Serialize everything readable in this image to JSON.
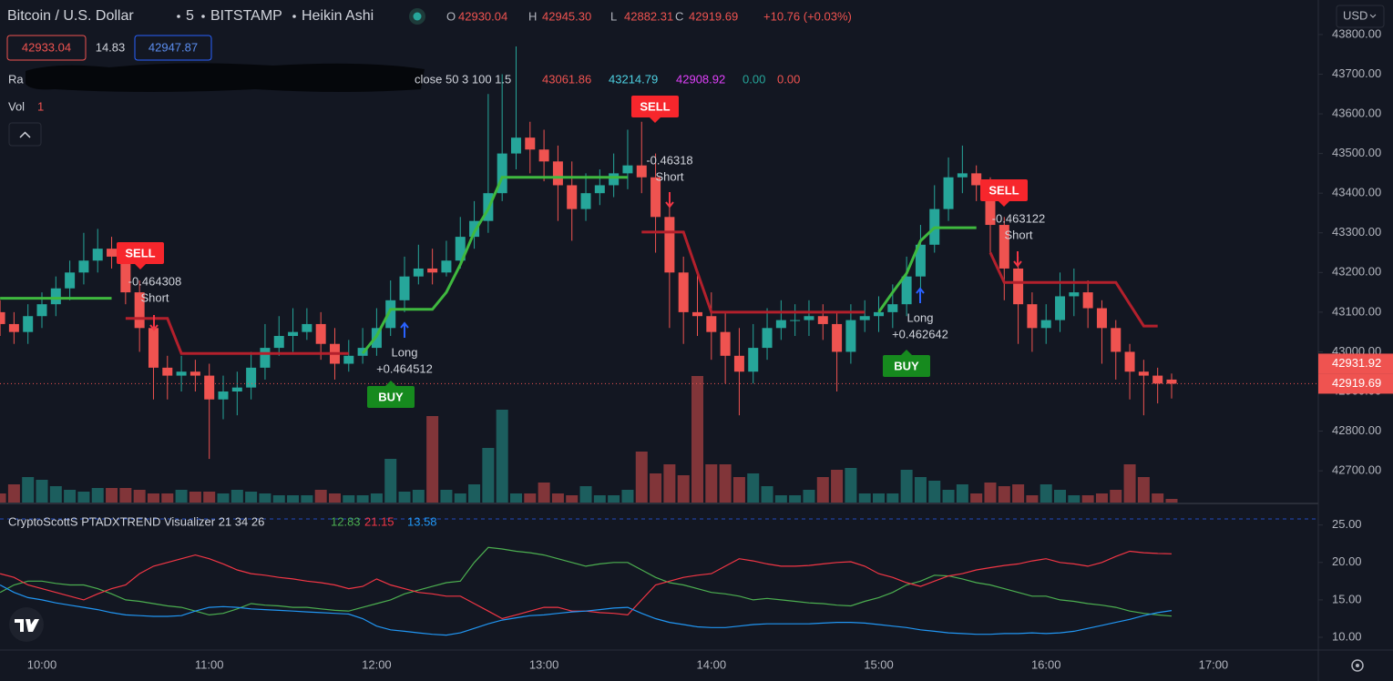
{
  "header": {
    "symbol": "Bitcoin / U.S. Dollar",
    "interval": "5",
    "exchange": "BITSTAMP",
    "style": "Heikin Ashi",
    "legend_keys": [
      "O",
      "H",
      "L",
      "C"
    ],
    "legend_values": [
      42930.04,
      {
        "value": 42945.3,
        "label": "42945.30"
      },
      42882.31,
      42919.69
    ],
    "change": "+10.76 (+0.03%)",
    "sell_price": 42933.04,
    "spread": 14.83,
    "buy_price": 42947.87,
    "indicator_visible_name": "Ra",
    "indicator_params": "close 50 3 100 1.5",
    "indicator_values": [
      43061.86,
      43214.79,
      42908.92,
      {
        "value": 0,
        "label": "0.00"
      },
      {
        "value": 0,
        "label": "0.00"
      }
    ],
    "volume_label": "Vol",
    "volume_length": 1,
    "currency": "USD"
  },
  "chart_data": [
    {
      "type": "candlestick",
      "x": [
        "09:45",
        "09:50",
        "09:55",
        "10:00",
        "10:05",
        "10:10",
        "10:15",
        "10:20",
        "10:25",
        "10:30",
        "10:35",
        "10:40",
        "10:45",
        "10:50",
        "10:55",
        "11:00",
        "11:05",
        "11:10",
        "11:15",
        "11:20",
        "11:25",
        "11:30",
        "11:35",
        "11:40",
        "11:45",
        "11:50",
        "11:55",
        "12:00",
        "12:05",
        "12:10",
        "12:15",
        "12:20",
        "12:25",
        "12:30",
        "12:35",
        "12:40",
        "12:45",
        "12:50",
        "12:55",
        "13:00",
        "13:05",
        "13:10",
        "13:15",
        "13:20",
        "13:25",
        "13:30",
        "13:35",
        "13:40",
        "13:45",
        "13:50",
        "13:55",
        "14:00",
        "14:05",
        "14:10",
        "14:15",
        "14:20",
        "14:25",
        "14:30",
        "14:35",
        "14:40",
        "14:45",
        "14:50",
        "14:55",
        "15:00",
        "15:05",
        "15:10",
        "15:15",
        "15:20",
        "15:25",
        "15:30",
        "15:35",
        "15:40",
        "15:45",
        "15:50",
        "15:55",
        "16:00",
        "16:05",
        "16:10",
        "16:15",
        "16:20",
        "16:25",
        "16:30",
        "16:35",
        "16:40",
        "16:45"
      ],
      "open": [
        43100,
        43070,
        43050,
        43090,
        43120,
        43160,
        43200,
        43230,
        43260,
        43240,
        43150,
        43060,
        42960,
        42940,
        42950,
        42940,
        42880,
        42900,
        42910,
        42960,
        43010,
        43040,
        43050,
        43070,
        43020,
        42970,
        42990,
        43010,
        43060,
        43130,
        43190,
        43210,
        43200,
        43230,
        43290,
        43330,
        43400,
        43500,
        43540,
        43510,
        43480,
        43420,
        43360,
        43400,
        43420,
        43450,
        43470,
        43440,
        43340,
        43200,
        43100,
        43090,
        43050,
        42990,
        42950,
        43010,
        43060,
        43080,
        43080,
        43090,
        43070,
        43000,
        43080,
        43090,
        43100,
        43120,
        43190,
        43270,
        43360,
        43440,
        43450,
        43420,
        43320,
        43210,
        43120,
        43060,
        43080,
        43140,
        43150,
        43110,
        43060,
        43000,
        42950,
        42940,
        42930.04
      ],
      "high": [
        43130,
        43100,
        43120,
        43150,
        43190,
        43230,
        43300,
        43310,
        43290,
        43270,
        43180,
        43090,
        42990,
        42990,
        42980,
        42970,
        42940,
        42950,
        43000,
        43070,
        43090,
        43110,
        43110,
        43100,
        43060,
        43030,
        43060,
        43110,
        43180,
        43240,
        43270,
        43260,
        43280,
        43340,
        43380,
        43650,
        43700,
        43770,
        43580,
        43560,
        43520,
        43480,
        43450,
        43460,
        43500,
        43560,
        43580,
        43500,
        43380,
        43240,
        43200,
        43150,
        43100,
        43060,
        43070,
        43110,
        43130,
        43120,
        43130,
        43120,
        43100,
        43120,
        43130,
        43140,
        43170,
        43240,
        43320,
        43420,
        43490,
        43520,
        43470,
        43440,
        43340,
        43240,
        43150,
        43120,
        43200,
        43210,
        43180,
        43130,
        43080,
        43020,
        42980,
        42960,
        42945.3
      ],
      "low": [
        43040,
        43020,
        43020,
        43060,
        43090,
        43130,
        43170,
        43200,
        43210,
        43120,
        43000,
        42880,
        42880,
        42900,
        42900,
        42730,
        42830,
        42840,
        42880,
        42930,
        42990,
        43000,
        43030,
        42980,
        42930,
        42950,
        42970,
        42990,
        43040,
        43100,
        43170,
        43170,
        43190,
        43210,
        43260,
        43300,
        43380,
        43460,
        43450,
        43430,
        43330,
        43280,
        43330,
        43370,
        43390,
        43410,
        43400,
        43250,
        43060,
        43020,
        43040,
        42980,
        42920,
        42840,
        42920,
        42980,
        43030,
        43040,
        43040,
        43030,
        42900,
        42970,
        43050,
        43050,
        43060,
        43090,
        43160,
        43250,
        43330,
        43400,
        43380,
        43250,
        43130,
        43020,
        43000,
        43020,
        43050,
        43090,
        43060,
        42970,
        42930,
        42880,
        42840,
        42870,
        42882.31
      ],
      "close": [
        43070,
        43050,
        43090,
        43120,
        43160,
        43200,
        43230,
        43260,
        43240,
        43150,
        43060,
        42960,
        42940,
        42950,
        42940,
        42880,
        42900,
        42910,
        42960,
        43010,
        43040,
        43050,
        43070,
        43020,
        42970,
        42990,
        43010,
        43060,
        43130,
        43190,
        43210,
        43200,
        43230,
        43290,
        43330,
        43400,
        43500,
        43540,
        43510,
        43480,
        43420,
        43360,
        43400,
        43420,
        43450,
        43470,
        43440,
        43340,
        43200,
        43100,
        43090,
        43050,
        42990,
        42950,
        43010,
        43060,
        43080,
        43080,
        43090,
        43070,
        43000,
        43080,
        43090,
        43100,
        43120,
        43190,
        43270,
        43360,
        43440,
        43450,
        43420,
        43320,
        43210,
        43120,
        43060,
        43080,
        43140,
        43150,
        43110,
        43060,
        43000,
        42950,
        42940,
        42920,
        42919.69
      ],
      "volume": [
        10,
        20,
        28,
        25,
        18,
        14,
        12,
        16,
        16,
        16,
        14,
        10,
        10,
        14,
        12,
        12,
        10,
        14,
        12,
        10,
        8,
        8,
        8,
        14,
        10,
        8,
        8,
        10,
        48,
        12,
        14,
        95,
        14,
        10,
        20,
        60,
        102,
        10,
        10,
        22,
        10,
        8,
        18,
        8,
        8,
        14,
        56,
        32,
        42,
        30,
        139,
        42,
        42,
        28,
        32,
        18,
        8,
        8,
        14,
        28,
        36,
        38,
        10,
        10,
        10,
        36,
        28,
        24,
        14,
        20,
        10,
        22,
        18,
        20,
        8,
        20,
        14,
        8,
        8,
        10,
        14,
        42,
        28,
        10,
        4
      ],
      "up_color": "#26a69a",
      "down_color": "#ef5350",
      "trend": [
        {
          "color": "#3fb93f",
          "values": [
            43135,
            43135,
            43135,
            43135,
            43135,
            43135,
            43135,
            43135,
            43135,
            null,
            null,
            null,
            null,
            null,
            null,
            null,
            null,
            null,
            null,
            null,
            null,
            null,
            null,
            null,
            null,
            null,
            42996,
            43040,
            43107,
            43107,
            43107,
            43107,
            43150,
            43220,
            43302,
            43360,
            43440,
            43440,
            43440,
            43440,
            43440,
            43440,
            43440,
            43440,
            43440,
            43440,
            null,
            null,
            null,
            null,
            null,
            null,
            null,
            null,
            null,
            null,
            null,
            null,
            null,
            null,
            null,
            null,
            null,
            43100,
            43150,
            43198,
            43280,
            43313,
            43313,
            43313,
            43313,
            null,
            null,
            null,
            null,
            null,
            null,
            null,
            null,
            null,
            null,
            null,
            null,
            null,
            null
          ]
        },
        {
          "color": "#b3202c",
          "values": [
            null,
            null,
            null,
            null,
            null,
            null,
            null,
            null,
            null,
            43084,
            43084,
            43084,
            43084,
            42996,
            42996,
            42996,
            42996,
            42996,
            42996,
            42996,
            42996,
            42996,
            42996,
            42996,
            42996,
            42996,
            null,
            null,
            null,
            null,
            null,
            null,
            null,
            null,
            null,
            null,
            null,
            null,
            null,
            null,
            null,
            null,
            null,
            null,
            null,
            null,
            43302,
            43302,
            43302,
            43302,
            43200,
            43100,
            43100,
            43100,
            43100,
            43100,
            43100,
            43100,
            43100,
            43100,
            43100,
            43100,
            43100,
            null,
            null,
            null,
            null,
            null,
            null,
            null,
            null,
            43250,
            43175,
            43175,
            43175,
            43175,
            43175,
            43175,
            43175,
            43175,
            43175,
            43120,
            43065,
            43065,
            null
          ]
        }
      ],
      "ylim": [
        42620,
        43887
      ],
      "yticks": [
        {
          "value": 43800,
          "label": "43800.00"
        },
        {
          "value": 43700,
          "label": "43700.00"
        },
        {
          "value": 43600,
          "label": "43600.00"
        },
        {
          "value": 43500,
          "label": "43500.00"
        },
        {
          "value": 43400,
          "label": "43400.00"
        },
        {
          "value": 43300,
          "label": "43300.00"
        },
        {
          "value": 43200,
          "label": "43200.00"
        },
        {
          "value": 43100,
          "label": "43100.00"
        },
        {
          "value": 43000,
          "label": "43000.00"
        },
        {
          "value": 42900,
          "label": "42900.00"
        },
        {
          "value": 42800,
          "label": "42800.00"
        },
        {
          "value": 42700,
          "label": "42700.00"
        }
      ],
      "price_tags": [
        42931.92,
        42919.69
      ],
      "signals": [
        {
          "label": "SELL",
          "value": -0.464308,
          "side": "Short"
        },
        {
          "label": "BUY",
          "value": {
            "value": 0.464512,
            "label": "+0.464512"
          },
          "side": "Long"
        },
        {
          "label": "SELL",
          "value": -0.46318,
          "side": "Short"
        },
        {
          "label": "BUY",
          "value": {
            "value": 0.462642,
            "label": "+0.462642"
          },
          "side": "Long"
        },
        {
          "label": "SELL",
          "value": -0.463122,
          "side": "Short"
        }
      ],
      "xticks": [
        "10:00",
        "11:00",
        "12:00",
        "13:00",
        "14:00",
        "15:00",
        "16:00",
        "17:00"
      ]
    },
    {
      "type": "line",
      "title": "CryptoScottS PTADXTREND Visualizer 21 34 26",
      "series": [
        {
          "color": "#4caf50",
          "values": [
            16,
            17,
            17.5,
            17.5,
            17.2,
            17,
            17,
            16.5,
            15.8,
            15,
            14.8,
            14.5,
            14.2,
            14,
            13.5,
            13,
            13.2,
            13.8,
            14.5,
            14.3,
            14.2,
            14,
            14,
            13.8,
            13.6,
            13.5,
            14,
            14.5,
            15,
            15.8,
            16.3,
            16.8,
            17.3,
            17.5,
            20,
            22,
            21.8,
            21.5,
            21.3,
            21,
            20.5,
            20,
            19.5,
            19.8,
            20,
            20,
            19,
            18,
            17.3,
            17,
            16.5,
            16,
            15.8,
            15.5,
            15,
            15.2,
            15,
            14.8,
            14.6,
            14.5,
            14.3,
            14.2,
            14.8,
            15.3,
            16,
            17,
            17.5,
            18.3,
            18.2,
            17.8,
            17.3,
            17,
            16.5,
            16,
            15.5,
            15.5,
            15,
            14.8,
            14.5,
            14.3,
            14,
            13.5,
            13.2,
            13,
            12.83
          ]
        },
        {
          "color": "#f23645",
          "values": [
            18.5,
            18,
            17,
            16.5,
            16,
            15.5,
            15,
            15.8,
            16.5,
            17,
            18.5,
            19.5,
            20,
            20.5,
            21,
            20.5,
            19.8,
            19,
            18.5,
            18.3,
            18,
            17.8,
            17.5,
            17.3,
            17,
            16.5,
            16.8,
            17.8,
            17,
            16.5,
            16,
            15.8,
            15.5,
            15.5,
            14.5,
            13.5,
            12.5,
            13,
            13.5,
            14,
            14,
            13.5,
            13.5,
            13.3,
            13.2,
            13,
            15,
            17,
            17.5,
            18,
            18.3,
            18.5,
            19.5,
            20.5,
            20.2,
            19.8,
            19.5,
            19.5,
            19.6,
            19.8,
            20,
            20.1,
            19.5,
            18.5,
            18,
            17.3,
            16.8,
            17.5,
            18.2,
            18.5,
            19,
            19.3,
            19.6,
            19.8,
            20.2,
            20.5,
            20,
            19.8,
            19.5,
            20,
            20.8,
            21.5,
            21.3,
            21.2,
            21.15
          ]
        },
        {
          "color": "#2196f3",
          "values": [
            17,
            16,
            15.3,
            15,
            14.6,
            14.3,
            14,
            13.7,
            13.3,
            13,
            12.9,
            12.8,
            12.8,
            12.9,
            13.5,
            14,
            14.1,
            14,
            13.8,
            13.7,
            13.6,
            13.5,
            13.4,
            13.3,
            13.2,
            13.1,
            12.5,
            11.5,
            11,
            10.8,
            10.6,
            10.4,
            10.3,
            10.6,
            11.2,
            11.8,
            12.3,
            12.6,
            12.9,
            13,
            13.2,
            13.4,
            13.5,
            13.7,
            13.9,
            14,
            13.2,
            12.5,
            12,
            11.7,
            11.4,
            11.3,
            11.3,
            11.5,
            11.7,
            11.8,
            11.8,
            11.8,
            11.8,
            11.9,
            12,
            12,
            11.9,
            11.7,
            11.5,
            11.3,
            11,
            10.8,
            10.6,
            10.5,
            10.4,
            10.4,
            10.5,
            10.5,
            10.6,
            10.5,
            10.6,
            10.8,
            11.2,
            11.6,
            12,
            12.4,
            12.9,
            13.3,
            13.58
          ]
        }
      ],
      "ylim": [
        8.3,
        28
      ],
      "yticks": [
        {
          "value": 25,
          "label": "25.00"
        },
        {
          "value": 20,
          "label": "20.00"
        },
        {
          "value": 15,
          "label": "15.00"
        },
        {
          "value": 10,
          "label": "10.00"
        }
      ]
    }
  ]
}
